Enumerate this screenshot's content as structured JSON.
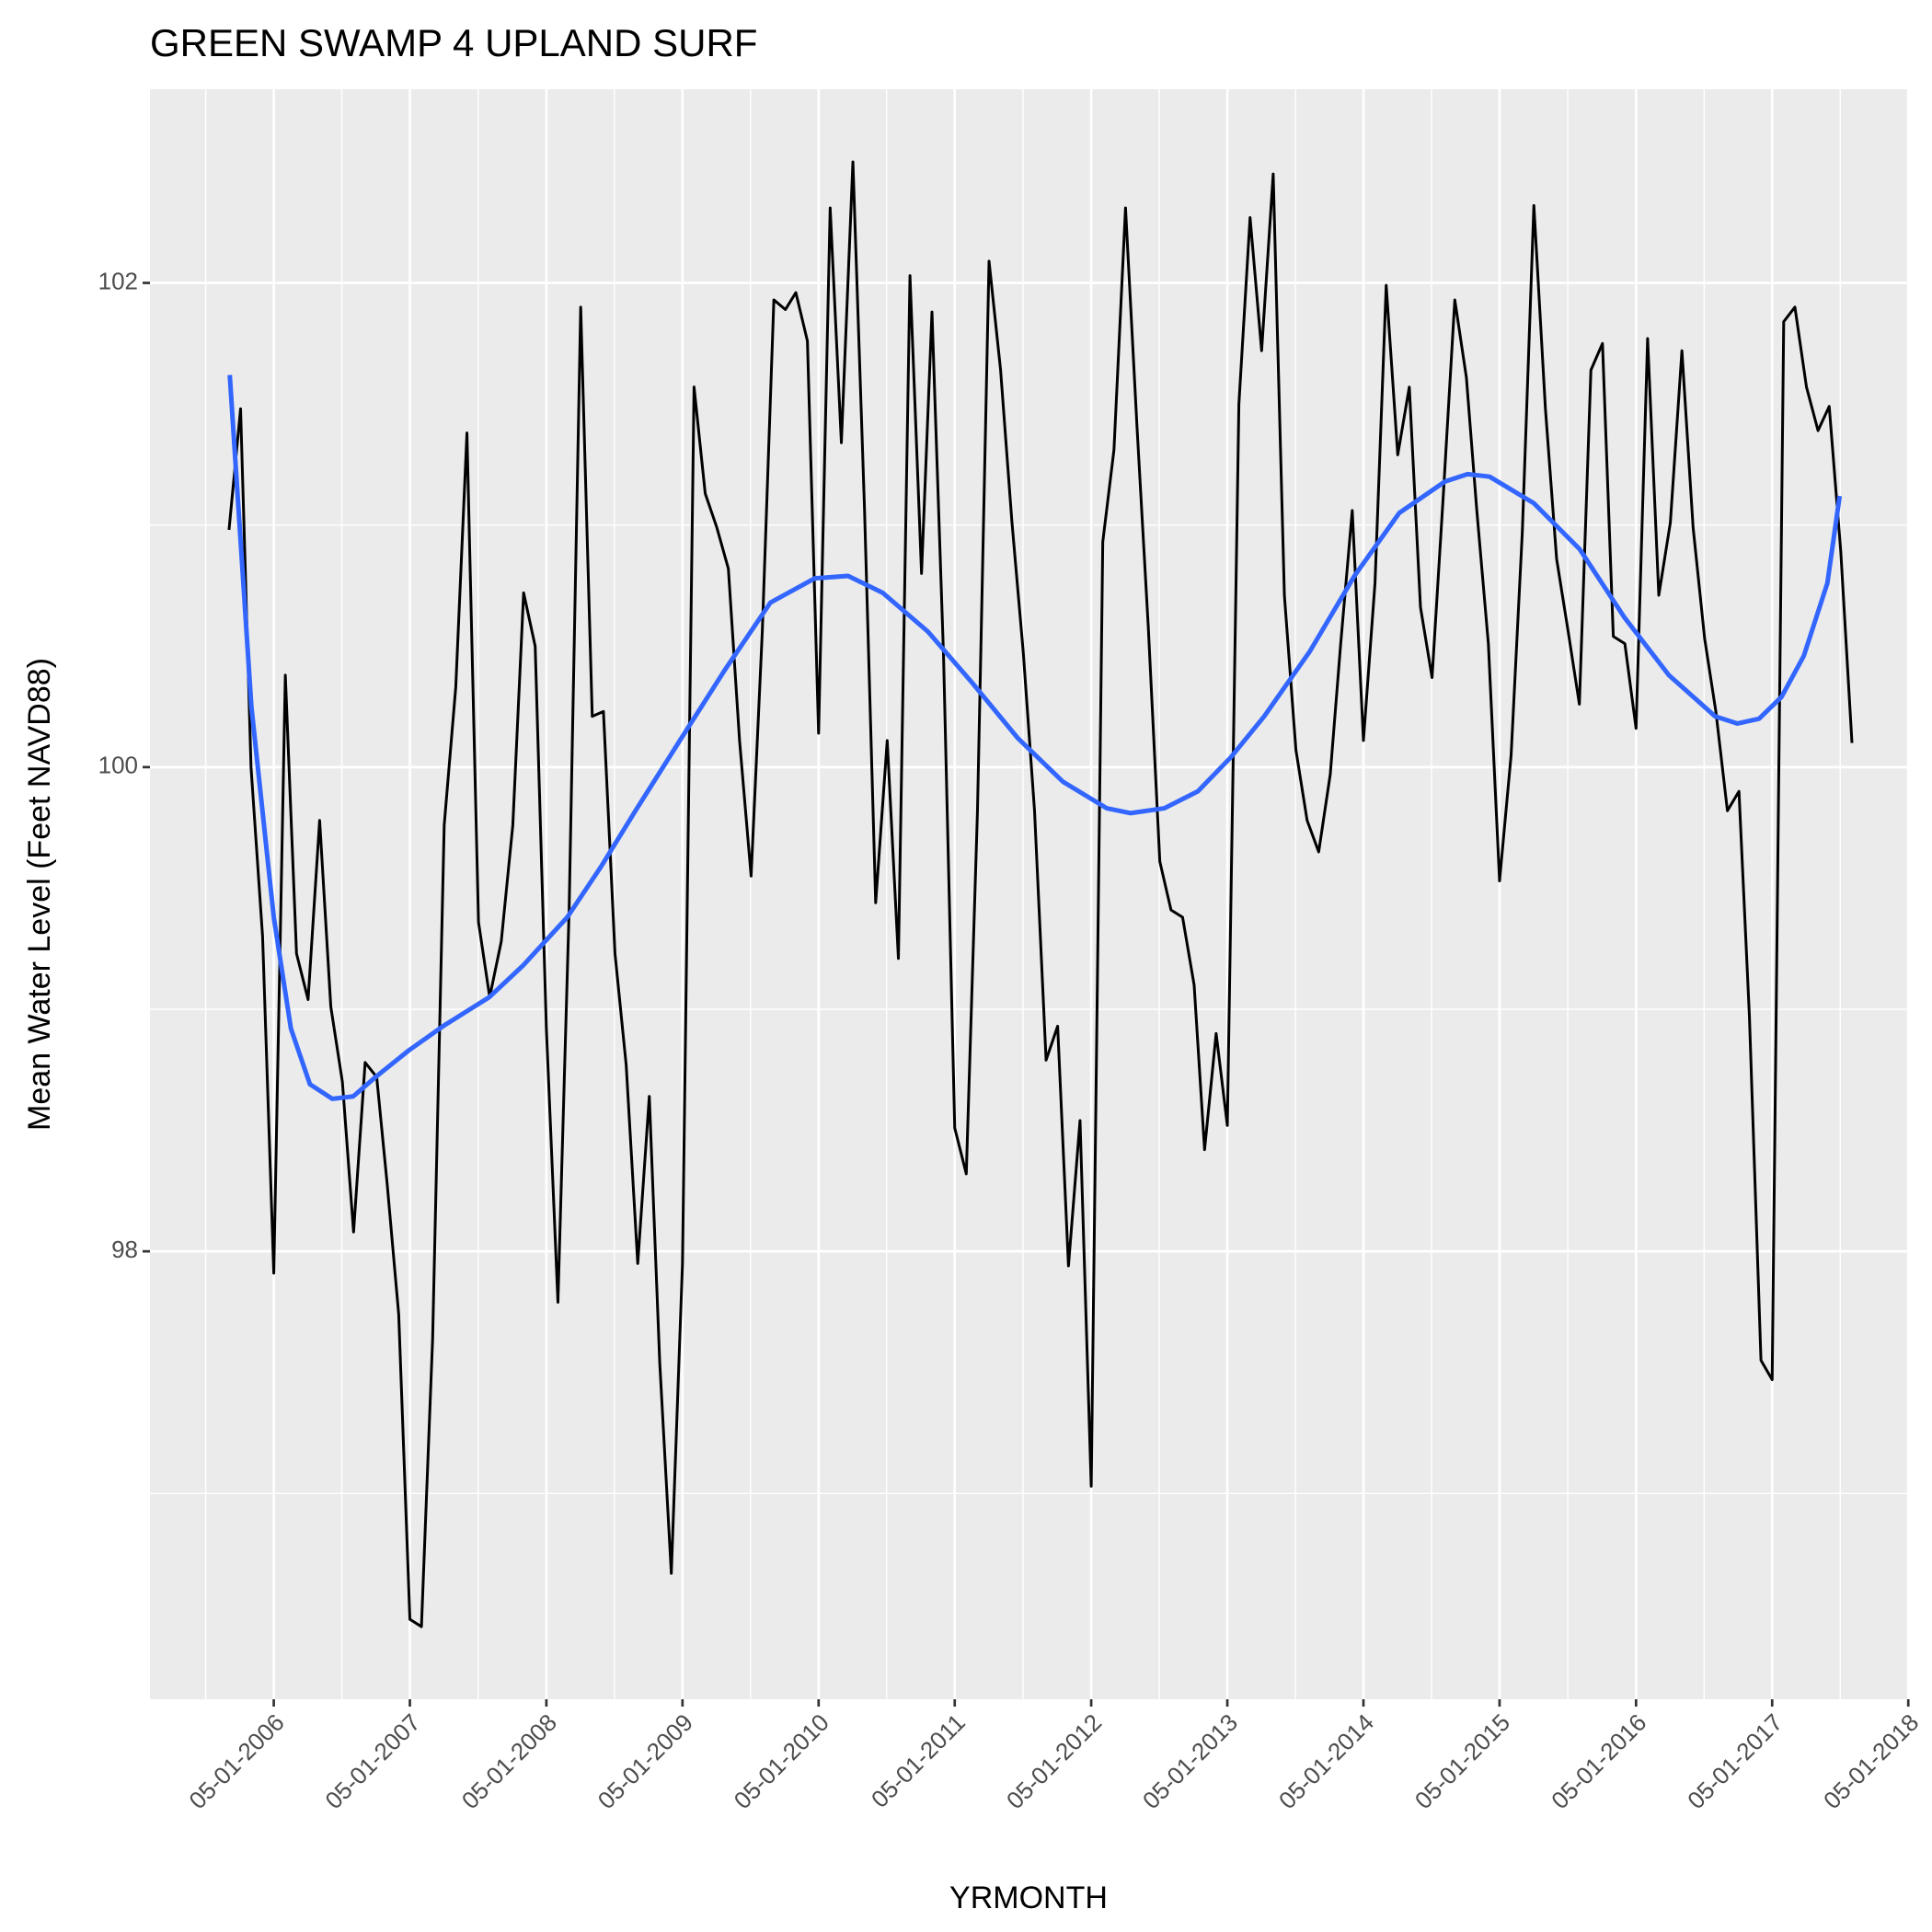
{
  "chart_data": {
    "type": "line",
    "title": "GREEN SWAMP 4 UPLAND SURF",
    "x_label": "YRMONTH",
    "y_label": "Mean Water Level (Feet NAVD88)",
    "xlim": [
      "2005-06-03",
      "2018-04-28"
    ],
    "ylim": [
      96.15,
      102.8
    ],
    "xticks": [
      {
        "value": "2006-05-01",
        "label": "05-01-2006"
      },
      {
        "value": "2007-05-01",
        "label": "05-01-2007"
      },
      {
        "value": "2008-05-01",
        "label": "05-01-2008"
      },
      {
        "value": "2009-05-01",
        "label": "05-01-2009"
      },
      {
        "value": "2010-05-01",
        "label": "05-01-2010"
      },
      {
        "value": "2011-05-01",
        "label": "05-01-2011"
      },
      {
        "value": "2012-05-01",
        "label": "05-01-2012"
      },
      {
        "value": "2013-05-01",
        "label": "05-01-2013"
      },
      {
        "value": "2014-05-01",
        "label": "05-01-2014"
      },
      {
        "value": "2015-05-01",
        "label": "05-01-2015"
      },
      {
        "value": "2016-05-01",
        "label": "05-01-2016"
      },
      {
        "value": "2017-05-01",
        "label": "05-01-2017"
      },
      {
        "value": "2018-05-01",
        "label": "05-01-2018"
      }
    ],
    "yticks": [
      98,
      100,
      102
    ],
    "yminor": [
      97,
      99,
      101
    ],
    "grid": true,
    "series": [
      {
        "color": "#000000",
        "x": [
          "2006-01-01",
          "2006-02-01",
          "2006-03-01",
          "2006-04-01",
          "2006-05-01",
          "2006-06-01",
          "2006-07-01",
          "2006-08-01",
          "2006-09-01",
          "2006-10-01",
          "2006-11-01",
          "2006-12-01",
          "2007-01-01",
          "2007-02-01",
          "2007-03-01",
          "2007-04-01",
          "2007-05-01",
          "2007-06-01",
          "2007-07-01",
          "2007-08-01",
          "2007-09-01",
          "2007-10-01",
          "2007-11-01",
          "2007-12-01",
          "2008-01-01",
          "2008-02-01",
          "2008-03-01",
          "2008-04-01",
          "2008-05-01",
          "2008-06-01",
          "2008-07-01",
          "2008-08-01",
          "2008-09-01",
          "2008-10-01",
          "2008-11-01",
          "2008-12-01",
          "2009-01-01",
          "2009-02-01",
          "2009-03-01",
          "2009-04-01",
          "2009-05-01",
          "2009-06-01",
          "2009-07-01",
          "2009-08-01",
          "2009-09-01",
          "2009-10-01",
          "2009-11-01",
          "2009-12-01",
          "2010-01-01",
          "2010-02-01",
          "2010-03-01",
          "2010-04-01",
          "2010-05-01",
          "2010-06-01",
          "2010-07-01",
          "2010-08-01",
          "2010-09-01",
          "2010-10-01",
          "2010-11-01",
          "2010-12-01",
          "2011-01-01",
          "2011-02-01",
          "2011-03-01",
          "2011-04-01",
          "2011-05-01",
          "2011-06-01",
          "2011-07-01",
          "2011-08-01",
          "2011-09-01",
          "2011-10-01",
          "2011-11-01",
          "2011-12-01",
          "2012-01-01",
          "2012-02-01",
          "2012-03-01",
          "2012-04-01",
          "2012-05-01",
          "2012-06-01",
          "2012-07-01",
          "2012-08-01",
          "2012-09-01",
          "2012-10-01",
          "2012-11-01",
          "2012-12-01",
          "2013-01-01",
          "2013-02-01",
          "2013-03-01",
          "2013-04-01",
          "2013-05-01",
          "2013-06-01",
          "2013-07-01",
          "2013-08-01",
          "2013-09-01",
          "2013-10-01",
          "2013-11-01",
          "2013-12-01",
          "2014-01-01",
          "2014-02-01",
          "2014-03-01",
          "2014-04-01",
          "2014-05-01",
          "2014-06-01",
          "2014-07-01",
          "2014-08-01",
          "2014-09-01",
          "2014-10-01",
          "2014-11-01",
          "2014-12-01",
          "2015-01-01",
          "2015-02-01",
          "2015-03-01",
          "2015-04-01",
          "2015-05-01",
          "2015-06-01",
          "2015-07-01",
          "2015-08-01",
          "2015-09-01",
          "2015-10-01",
          "2015-11-01",
          "2015-12-01",
          "2016-01-01",
          "2016-02-01",
          "2016-03-01",
          "2016-04-01",
          "2016-05-01",
          "2016-06-01",
          "2016-07-01",
          "2016-08-01",
          "2016-09-01",
          "2016-10-01",
          "2016-11-01",
          "2016-12-01",
          "2017-01-01",
          "2017-02-01",
          "2017-03-01",
          "2017-04-01",
          "2017-05-01",
          "2017-06-01",
          "2017-07-01",
          "2017-08-01",
          "2017-09-01",
          "2017-10-01",
          "2017-11-01",
          "2017-12-01"
        ],
        "values": [
          100.98,
          101.48,
          100.0,
          99.3,
          97.91,
          100.38,
          99.23,
          99.04,
          99.78,
          99.01,
          98.7,
          98.08,
          98.78,
          98.72,
          98.28,
          97.74,
          96.48,
          96.45,
          97.64,
          99.76,
          100.33,
          101.38,
          99.36,
          99.05,
          99.28,
          99.76,
          100.72,
          100.5,
          98.92,
          97.79,
          99.41,
          101.9,
          100.21,
          100.23,
          99.23,
          98.77,
          97.95,
          98.64,
          97.54,
          96.67,
          97.95,
          101.57,
          101.13,
          100.99,
          100.82,
          100.11,
          99.55,
          100.56,
          101.93,
          101.89,
          101.96,
          101.76,
          100.14,
          102.31,
          101.34,
          102.5,
          101.07,
          99.44,
          100.11,
          99.21,
          102.03,
          100.8,
          101.88,
          100.46,
          98.51,
          98.32,
          99.82,
          102.09,
          101.64,
          101.02,
          100.47,
          99.82,
          98.79,
          98.93,
          97.94,
          98.54,
          97.03,
          100.93,
          101.31,
          102.31,
          101.4,
          100.58,
          99.61,
          99.41,
          99.38,
          99.1,
          98.42,
          98.9,
          98.52,
          101.5,
          102.27,
          101.72,
          102.45,
          100.71,
          100.07,
          99.78,
          99.65,
          99.97,
          100.51,
          101.06,
          100.11,
          100.76,
          101.99,
          101.29,
          101.57,
          100.66,
          100.37,
          101.12,
          101.93,
          101.61,
          101.06,
          100.51,
          99.53,
          100.05,
          100.97,
          102.32,
          101.48,
          100.86,
          100.56,
          100.26,
          101.64,
          101.75,
          100.54,
          100.51,
          100.16,
          101.77,
          100.71,
          101.01,
          101.72,
          100.99,
          100.53,
          100.23,
          99.82,
          99.9,
          98.97,
          97.55,
          97.47,
          101.84,
          101.9,
          101.57,
          101.39,
          101.49,
          100.89,
          100.1
        ]
      },
      {
        "color": "#3366FF",
        "x": [
          "2006-01-03",
          "2006-03-02",
          "2006-05-01",
          "2006-06-16",
          "2006-08-06",
          "2006-10-05",
          "2006-11-30",
          "2007-01-29",
          "2007-04-28",
          "2007-07-29",
          "2007-11-30",
          "2008-02-28",
          "2008-06-26",
          "2008-09-25",
          "2008-12-26",
          "2009-04-24",
          "2009-08-22",
          "2009-12-23",
          "2010-04-21",
          "2010-07-19",
          "2010-10-20",
          "2011-02-18",
          "2011-06-16",
          "2011-10-17",
          "2012-02-15",
          "2012-06-12",
          "2012-08-14",
          "2012-11-13",
          "2013-02-11",
          "2013-05-10",
          "2013-08-08",
          "2013-12-09",
          "2014-04-07",
          "2014-08-05",
          "2014-12-06",
          "2015-02-04",
          "2015-04-04",
          "2015-08-01",
          "2015-12-02",
          "2016-03-30",
          "2016-07-28",
          "2016-11-29",
          "2017-01-28",
          "2017-03-27",
          "2017-05-26",
          "2017-07-25",
          "2017-09-26",
          "2017-10-29"
        ],
        "values": [
          101.62,
          100.25,
          99.38,
          98.92,
          98.69,
          98.63,
          98.64,
          98.72,
          98.83,
          98.93,
          99.05,
          99.18,
          99.38,
          99.59,
          99.82,
          100.11,
          100.4,
          100.68,
          100.78,
          100.79,
          100.72,
          100.56,
          100.35,
          100.12,
          99.94,
          99.83,
          99.81,
          99.83,
          99.9,
          100.04,
          100.21,
          100.48,
          100.79,
          101.05,
          101.18,
          101.21,
          101.2,
          101.09,
          100.9,
          100.62,
          100.38,
          100.21,
          100.18,
          100.2,
          100.29,
          100.46,
          100.76,
          101.12
        ]
      }
    ]
  }
}
